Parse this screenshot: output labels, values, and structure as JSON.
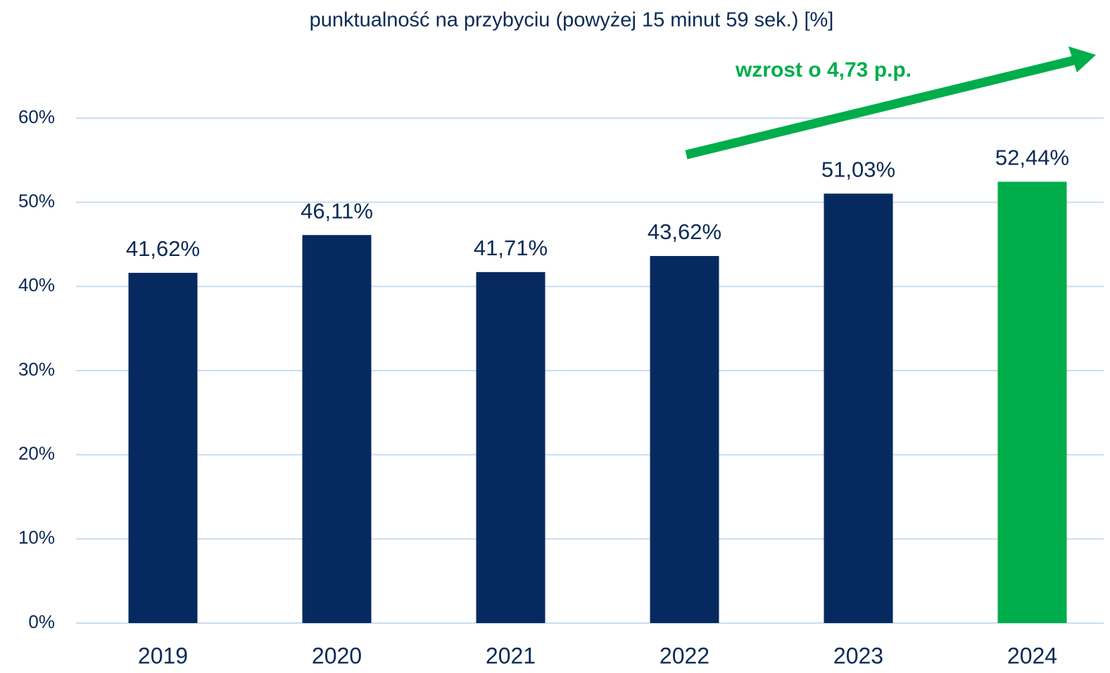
{
  "chart_data": {
    "type": "bar",
    "title": "punktualność na przybyciu (powyżej 15 minut 59 sek.) [%]",
    "annotation": "wzrost o 4,73 p.p.",
    "categories": [
      "2019",
      "2020",
      "2021",
      "2022",
      "2023",
      "2024"
    ],
    "values": [
      41.62,
      46.11,
      41.71,
      43.62,
      51.03,
      52.44
    ],
    "value_labels": [
      "41,62%",
      "46,11%",
      "41,71%",
      "43,62%",
      "51,03%",
      "52,44%"
    ],
    "colors": [
      "#062a5f",
      "#062a5f",
      "#062a5f",
      "#062a5f",
      "#062a5f",
      "#00ad4b"
    ],
    "ylim": [
      0,
      60
    ],
    "yticks": [
      {
        "value": 0,
        "label": "0%"
      },
      {
        "value": 10,
        "label": "10%"
      },
      {
        "value": 20,
        "label": "20%"
      },
      {
        "value": 30,
        "label": "30%"
      },
      {
        "value": 40,
        "label": "40%"
      },
      {
        "value": 50,
        "label": "50%"
      },
      {
        "value": 60,
        "label": "60%"
      }
    ],
    "grid": true
  }
}
